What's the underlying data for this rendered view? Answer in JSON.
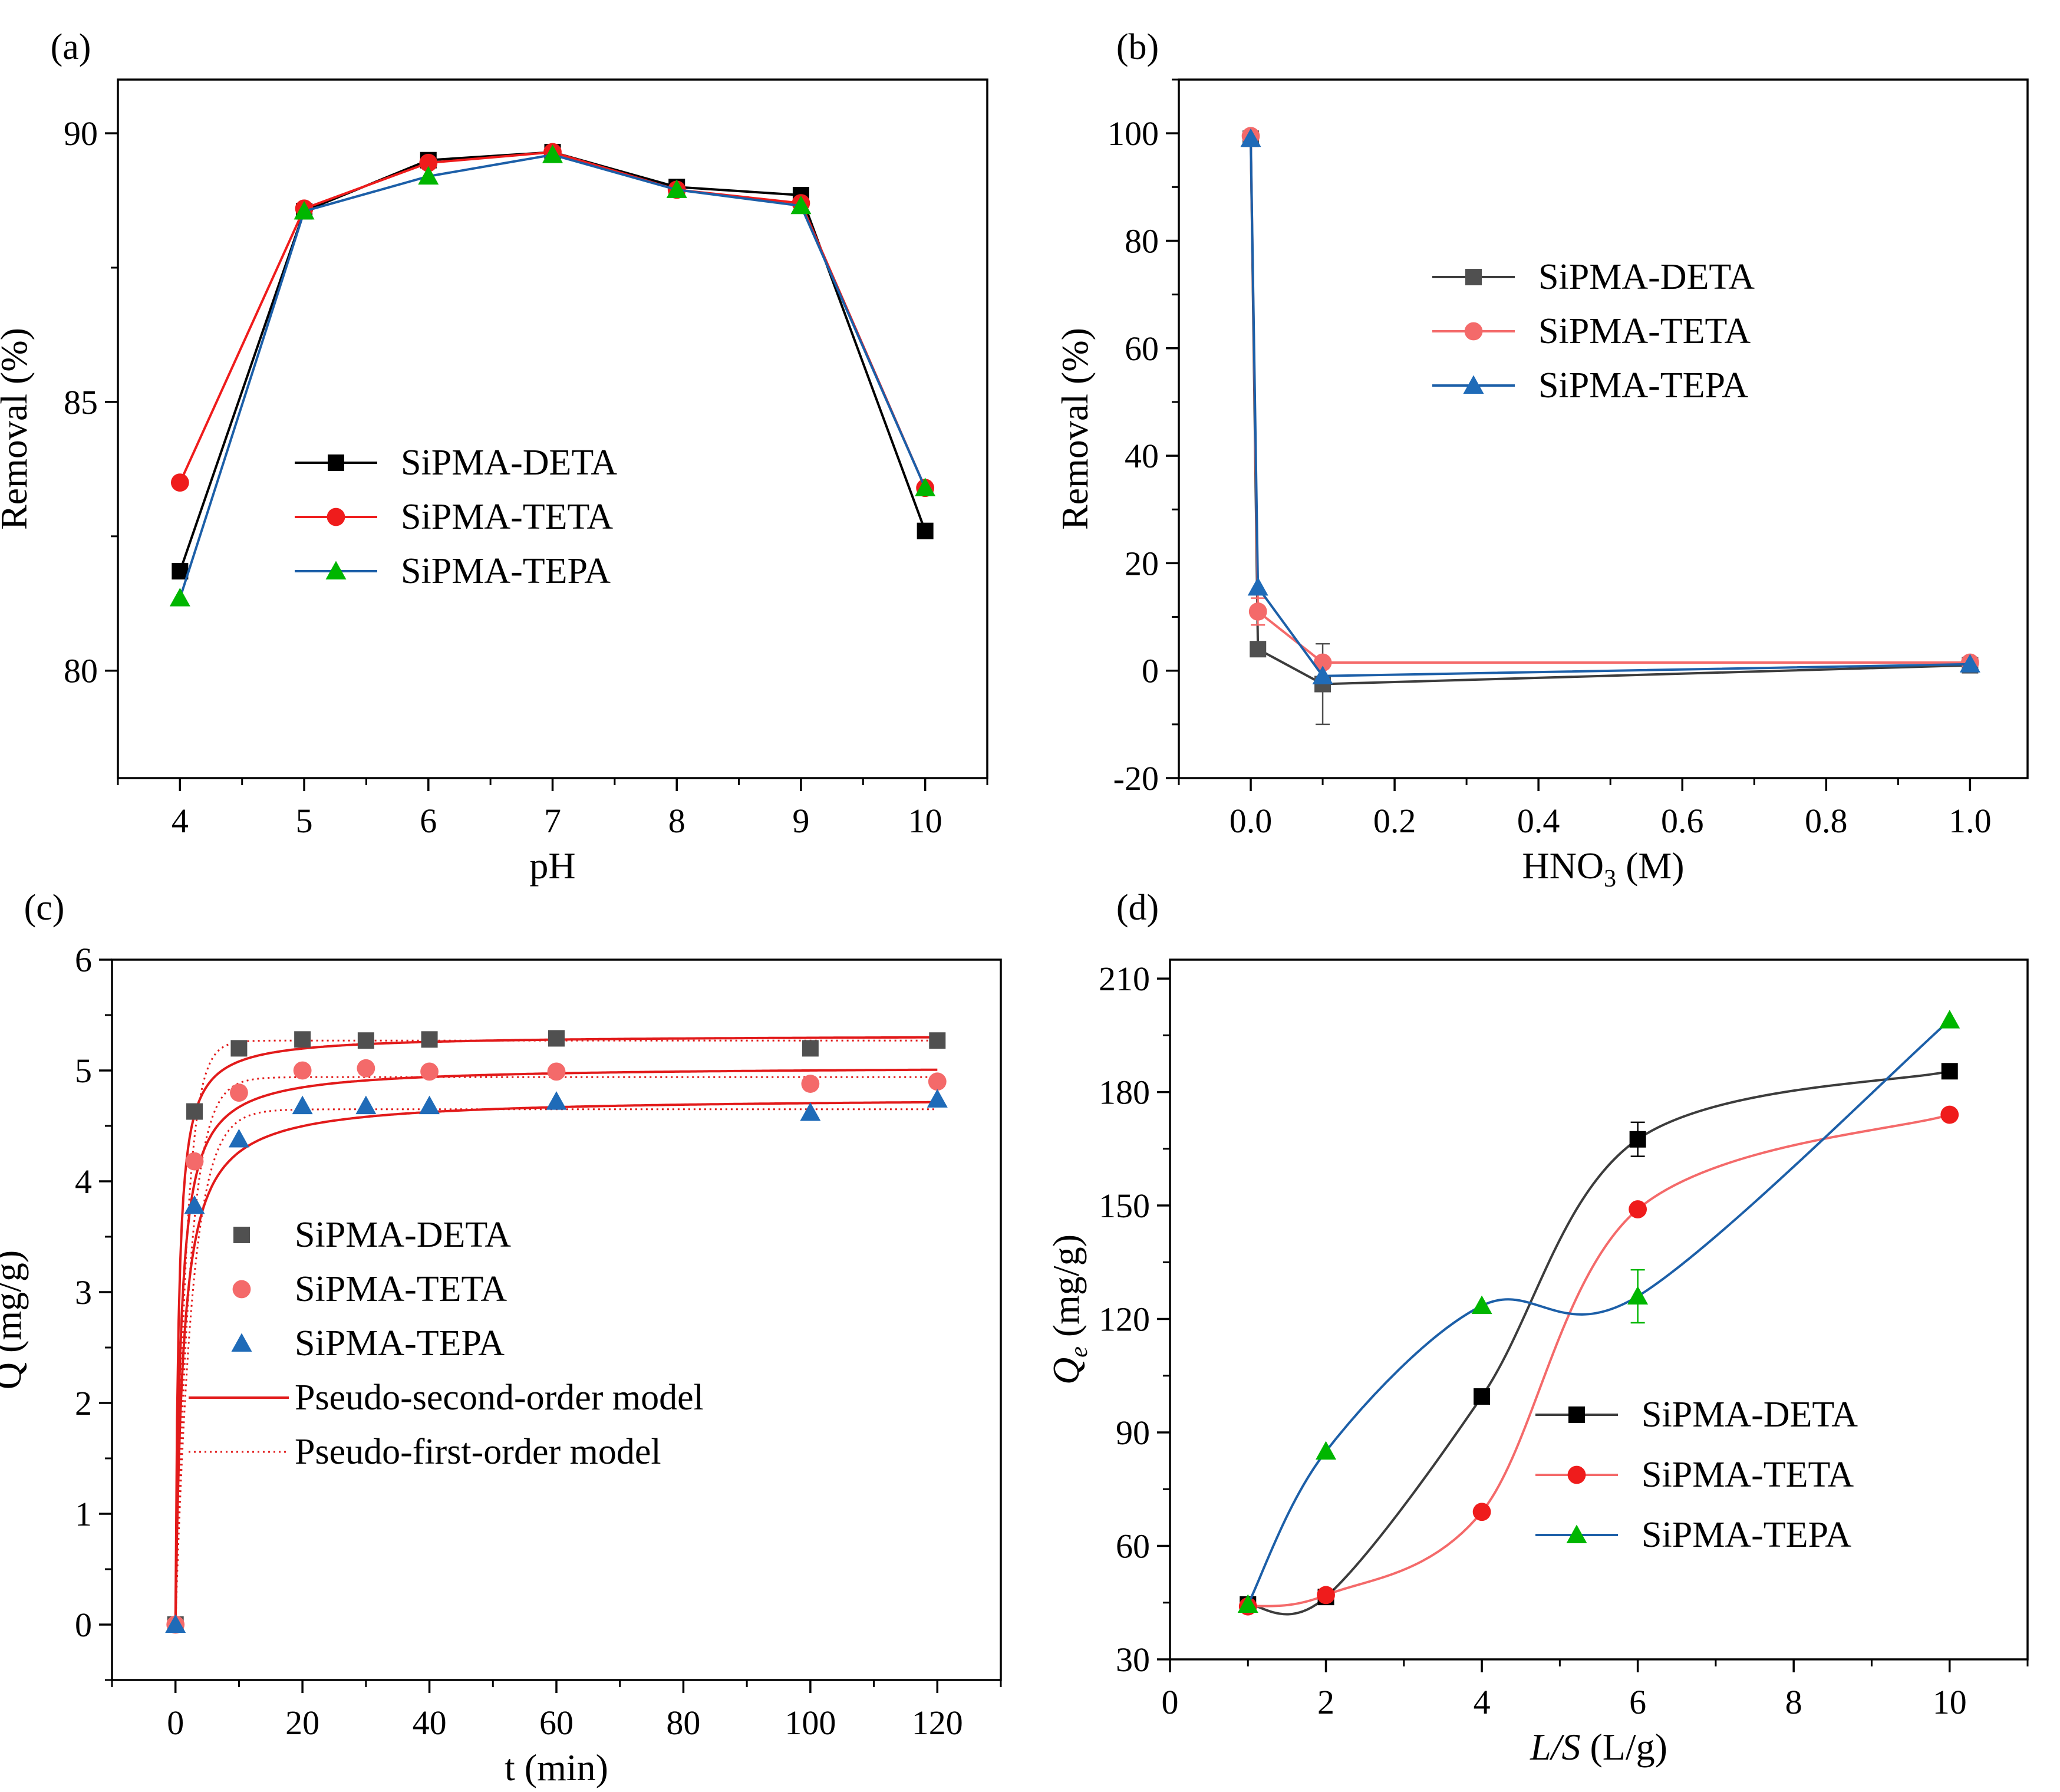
{
  "colors": {
    "deta": "#000000",
    "deta_line": "#3c3c3c",
    "deta_gray": "#505050",
    "teta": "#ef1c1c",
    "teta_line": "#f46a6a",
    "tepa_green": "#00b600",
    "tepa_line": "#1c5fa8",
    "tepa_blue": "#1f6bb8",
    "model": "#e21a1a"
  },
  "chart_data": [
    {
      "id": "a",
      "panel_label": "(a)",
      "type": "line",
      "xlabel": "pH",
      "ylabel": "Removal (%)",
      "xlim": [
        3.5,
        10.5
      ],
      "ylim": [
        78,
        91
      ],
      "xticks": [
        "4",
        "5",
        "6",
        "7",
        "8",
        "9",
        "10"
      ],
      "yticks": [
        "80",
        "85",
        "90"
      ],
      "legend": {
        "position": "center",
        "entries": [
          "SiPMA-DETA",
          "SiPMA-TETA",
          "SiPMA-TEPA"
        ]
      },
      "series": [
        {
          "name": "SiPMA-DETA",
          "marker": "square",
          "x": [
            4,
            5,
            6,
            7,
            8,
            9,
            10
          ],
          "values": [
            81.85,
            88.55,
            89.5,
            89.65,
            89.0,
            88.85,
            82.6
          ]
        },
        {
          "name": "SiPMA-TETA",
          "marker": "circle",
          "x": [
            4,
            5,
            6,
            7,
            8,
            9,
            10
          ],
          "values": [
            83.5,
            88.6,
            89.45,
            89.65,
            88.95,
            88.7,
            83.4
          ]
        },
        {
          "name": "SiPMA-TEPA",
          "marker": "triangle",
          "x": [
            4,
            5,
            6,
            7,
            8,
            9,
            10
          ],
          "values": [
            81.35,
            88.55,
            89.2,
            89.6,
            88.95,
            88.65,
            83.4
          ]
        }
      ]
    },
    {
      "id": "b",
      "panel_label": "(b)",
      "type": "line",
      "xlabel": "HNO",
      "xlabel_sub": "3",
      "xlabel_tail": " (M)",
      "ylabel": "Removal (%)",
      "xlim": [
        -0.1,
        1.08
      ],
      "ylim": [
        -20,
        110
      ],
      "xticks": [
        "0.0",
        "0.2",
        "0.4",
        "0.6",
        "0.8",
        "1.0"
      ],
      "yticks": [
        "-20",
        "0",
        "20",
        "40",
        "60",
        "80",
        "100"
      ],
      "legend": {
        "position": "top-right",
        "entries": [
          "SiPMA-DETA",
          "SiPMA-TETA",
          "SiPMA-TEPA"
        ]
      },
      "series": [
        {
          "name": "SiPMA-DETA",
          "marker": "square",
          "x": [
            0,
            0.01,
            0.1,
            1.0
          ],
          "values": [
            99,
            4,
            -2.5,
            1
          ],
          "yerr": [
            0,
            0,
            7.5,
            0
          ]
        },
        {
          "name": "SiPMA-TETA",
          "marker": "circle",
          "x": [
            0,
            0.01,
            0.1,
            1.0
          ],
          "values": [
            99.5,
            11,
            1.5,
            1.5
          ],
          "yerr": [
            0,
            2.5,
            0,
            0
          ]
        },
        {
          "name": "SiPMA-TEPA",
          "marker": "triangle",
          "x": [
            0,
            0.01,
            0.1,
            1.0
          ],
          "values": [
            99,
            15.5,
            -1,
            1.2
          ],
          "yerr": [
            0,
            0,
            0,
            0
          ]
        }
      ]
    },
    {
      "id": "c",
      "panel_label": "(c)",
      "type": "scatter",
      "xlabel": "t (min)",
      "ylabel": "Q (mg/g)",
      "xlim": [
        -10,
        130
      ],
      "ylim": [
        -0.5,
        6
      ],
      "xticks": [
        "0",
        "20",
        "40",
        "60",
        "80",
        "100",
        "120"
      ],
      "yticks": [
        "0",
        "1",
        "2",
        "3",
        "4",
        "5",
        "6"
      ],
      "legend": {
        "position": "center-left",
        "entries": [
          "SiPMA-DETA",
          "SiPMA-TETA",
          "SiPMA-TEPA",
          "Pseudo-second-order model",
          "Pseudo-first-order model"
        ]
      },
      "series": [
        {
          "name": "SiPMA-DETA",
          "marker": "square",
          "x": [
            0,
            3,
            10,
            20,
            30,
            40,
            60,
            100,
            120
          ],
          "values": [
            0,
            4.63,
            5.2,
            5.28,
            5.27,
            5.28,
            5.29,
            5.2,
            5.27
          ]
        },
        {
          "name": "SiPMA-TETA",
          "marker": "circle",
          "x": [
            0,
            3,
            10,
            20,
            30,
            40,
            60,
            100,
            120
          ],
          "values": [
            0,
            4.18,
            4.8,
            5.0,
            5.02,
            4.99,
            4.99,
            4.88,
            4.9
          ]
        },
        {
          "name": "SiPMA-TEPA",
          "marker": "triangle",
          "x": [
            0,
            3,
            10,
            20,
            30,
            40,
            60,
            100,
            120
          ],
          "values": [
            0,
            3.78,
            4.38,
            4.68,
            4.68,
            4.68,
            4.72,
            4.62,
            4.74
          ]
        }
      ],
      "models": {
        "pseudo_second_order": [
          {
            "series": "SiPMA-DETA",
            "qe": 5.32,
            "k2": 0.4
          },
          {
            "series": "SiPMA-TETA",
            "qe": 5.04,
            "k2": 0.25
          },
          {
            "series": "SiPMA-TEPA",
            "qe": 4.76,
            "k2": 0.18
          }
        ],
        "pseudo_first_order": [
          {
            "series": "SiPMA-DETA",
            "qe": 5.27,
            "k1": 0.6
          },
          {
            "series": "SiPMA-TETA",
            "qe": 4.94,
            "k1": 0.45
          },
          {
            "series": "SiPMA-TEPA",
            "qe": 4.65,
            "k1": 0.38
          }
        ]
      }
    },
    {
      "id": "d",
      "panel_label": "(d)",
      "type": "line",
      "xlabel": "L/S",
      "xlabel_tail": " (L/g)",
      "ylabel": "Q",
      "ylabel_sub": "e",
      "ylabel_tail": " (mg/g)",
      "xlim": [
        0,
        11
      ],
      "ylim": [
        30,
        215
      ],
      "xticks": [
        "0",
        "2",
        "4",
        "6",
        "8",
        "10"
      ],
      "yticks": [
        "30",
        "60",
        "90",
        "120",
        "150",
        "180",
        "210"
      ],
      "legend": {
        "position": "bottom-right",
        "entries": [
          "SiPMA-DETA",
          "SiPMA-TETA",
          "SiPMA-TEPA"
        ]
      },
      "series": [
        {
          "name": "SiPMA-DETA",
          "marker": "square",
          "x": [
            1,
            2,
            4,
            6,
            10
          ],
          "values": [
            44.5,
            46.5,
            99.5,
            167.5,
            185.5
          ],
          "yerr": [
            0,
            0,
            0,
            4.5,
            0
          ]
        },
        {
          "name": "SiPMA-TETA",
          "marker": "circle",
          "x": [
            1,
            2,
            4,
            6,
            10
          ],
          "values": [
            44,
            47,
            69,
            149,
            174
          ],
          "yerr": [
            0,
            0,
            0,
            0,
            0
          ]
        },
        {
          "name": "SiPMA-TEPA",
          "marker": "triangle",
          "x": [
            1,
            2,
            4,
            6,
            10
          ],
          "values": [
            44.5,
            85,
            123.5,
            126,
            199
          ],
          "yerr": [
            0,
            0,
            0,
            7,
            0
          ]
        }
      ]
    }
  ]
}
